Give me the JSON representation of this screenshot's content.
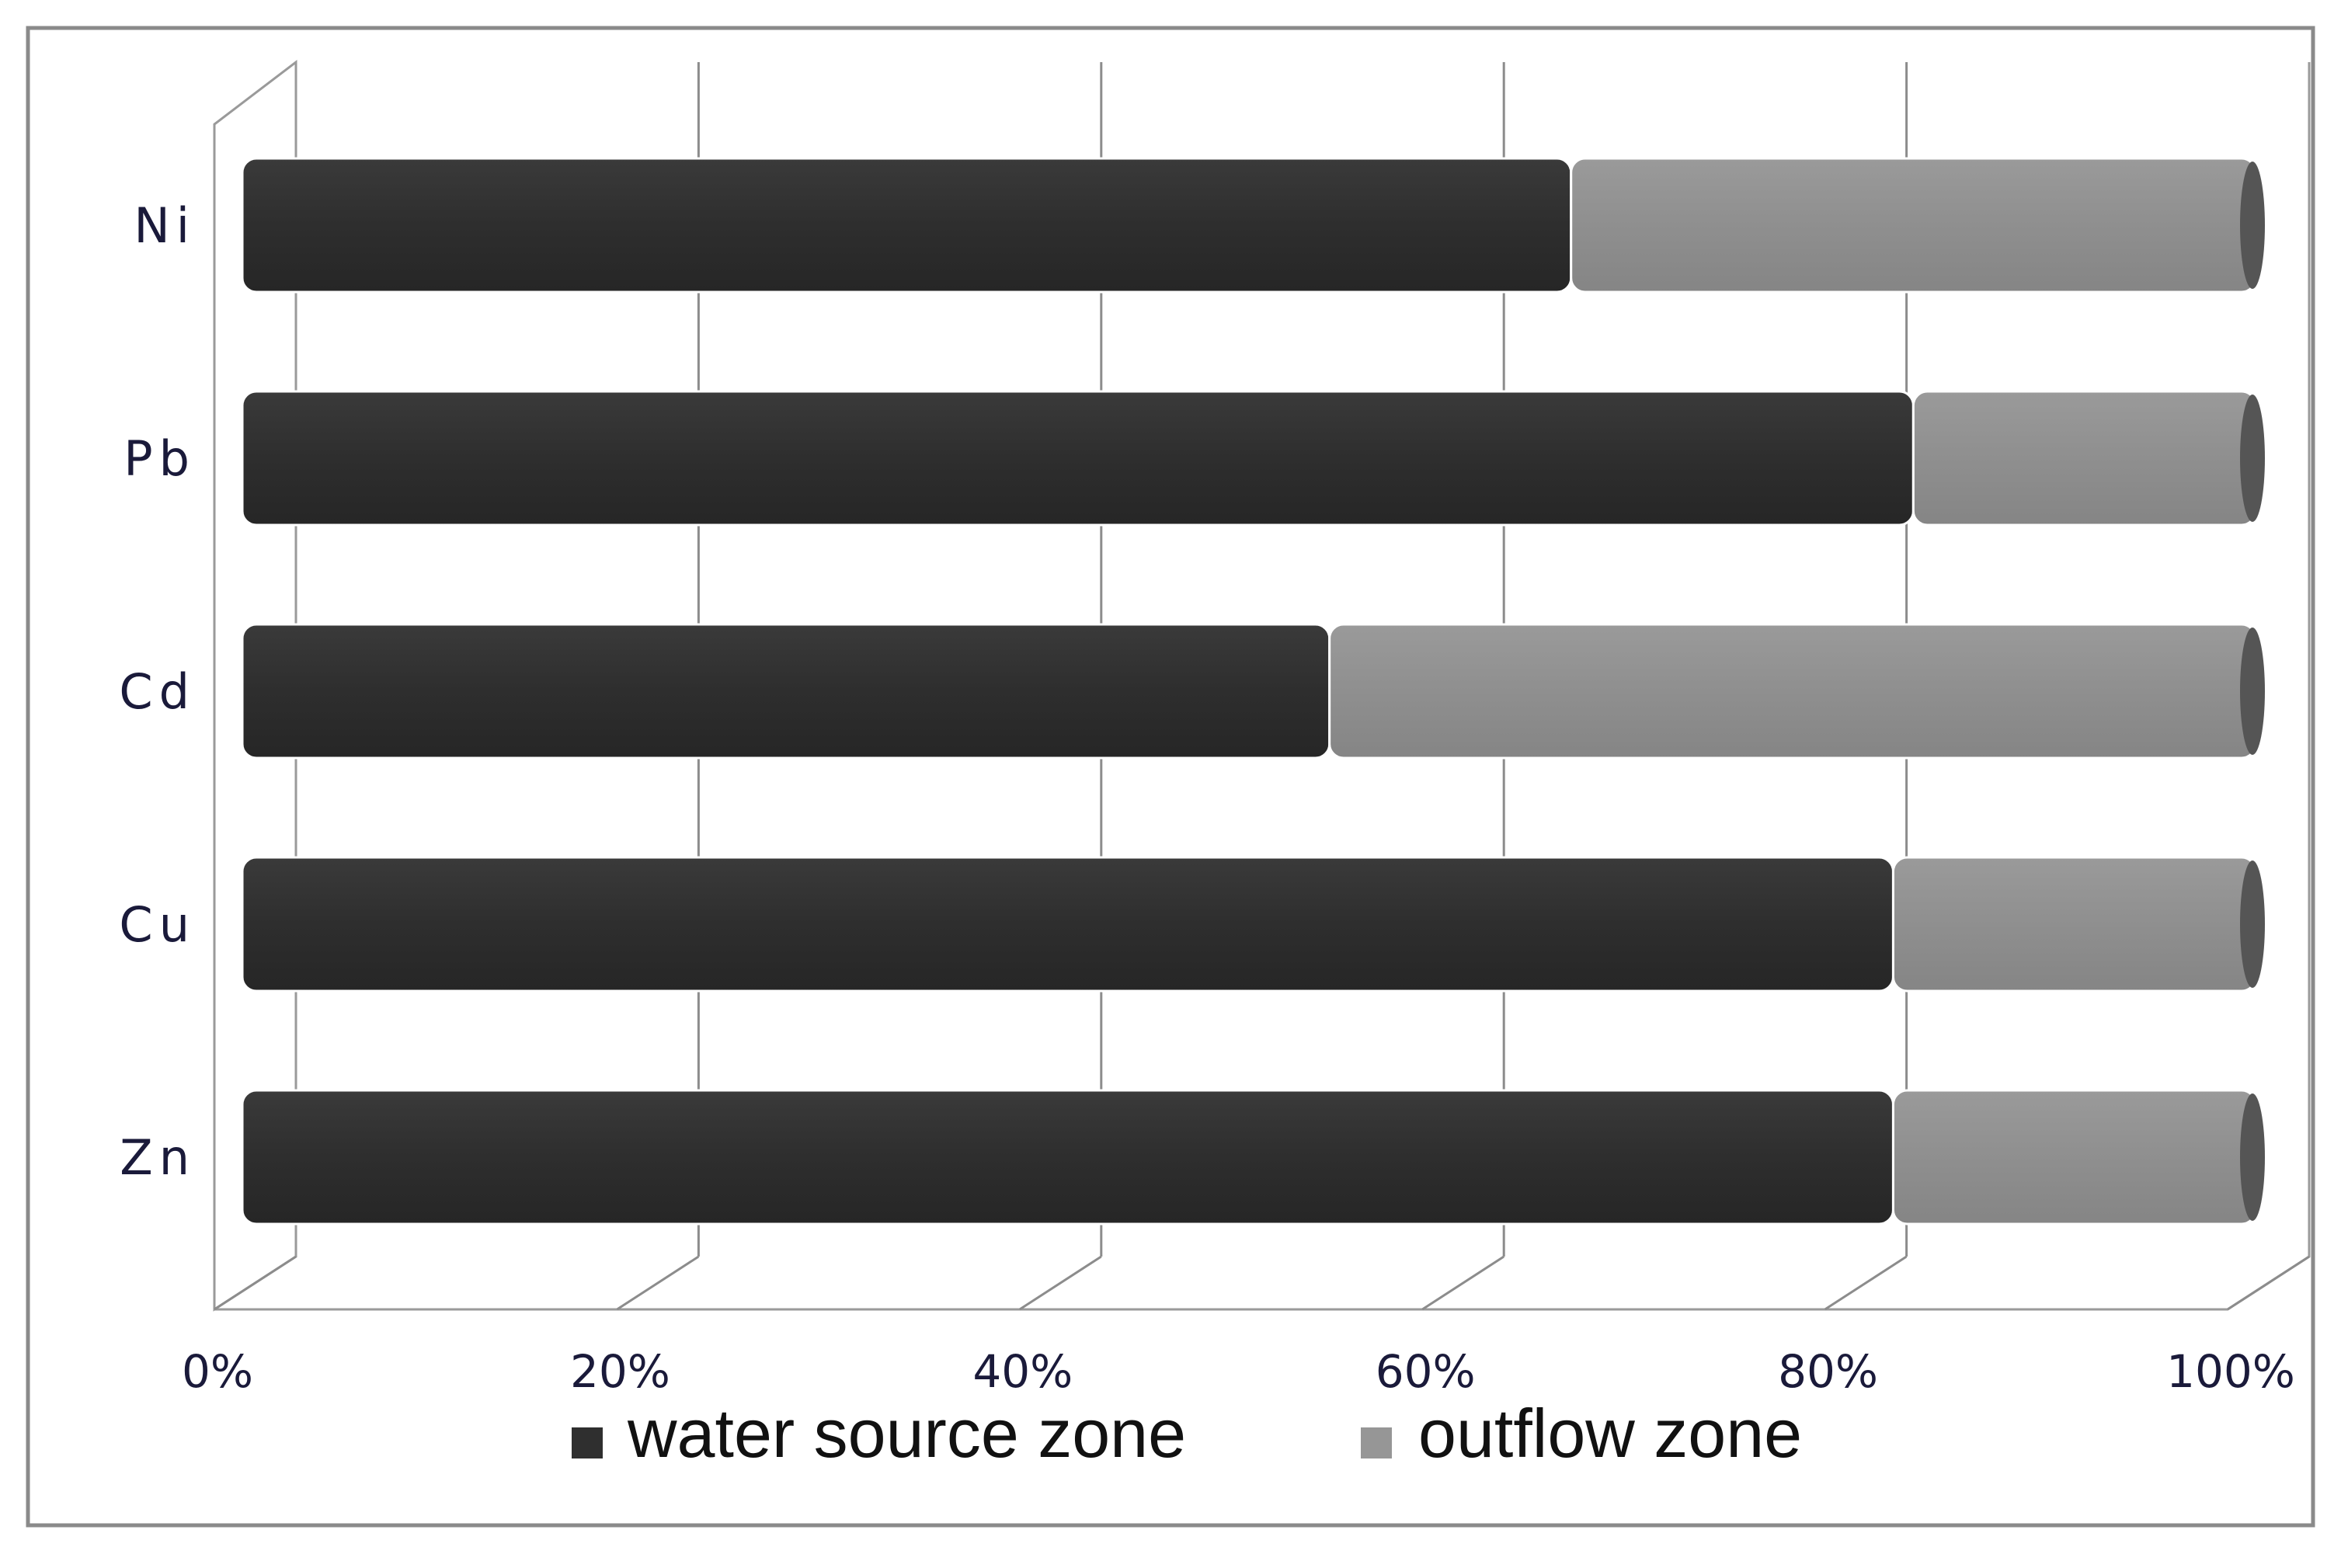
{
  "chart_data": {
    "type": "bar",
    "orientation": "horizontal",
    "stacked": "percent",
    "style": "3d-cylinder",
    "categories": [
      "Ni",
      "Pb",
      "Cd",
      "Cu",
      "Zn"
    ],
    "series": [
      {
        "name": "water source zone",
        "color": "#2f2f2f",
        "values": [
          66,
          83,
          54,
          82,
          82
        ]
      },
      {
        "name": "outflow zone",
        "color": "#969696",
        "values": [
          34,
          17,
          46,
          18,
          18
        ]
      }
    ],
    "x_ticks": [
      "0%",
      "20%",
      "40%",
      "60%",
      "80%",
      "100%"
    ],
    "xlim": [
      0,
      100
    ],
    "grid": true,
    "legend_position": "bottom"
  }
}
